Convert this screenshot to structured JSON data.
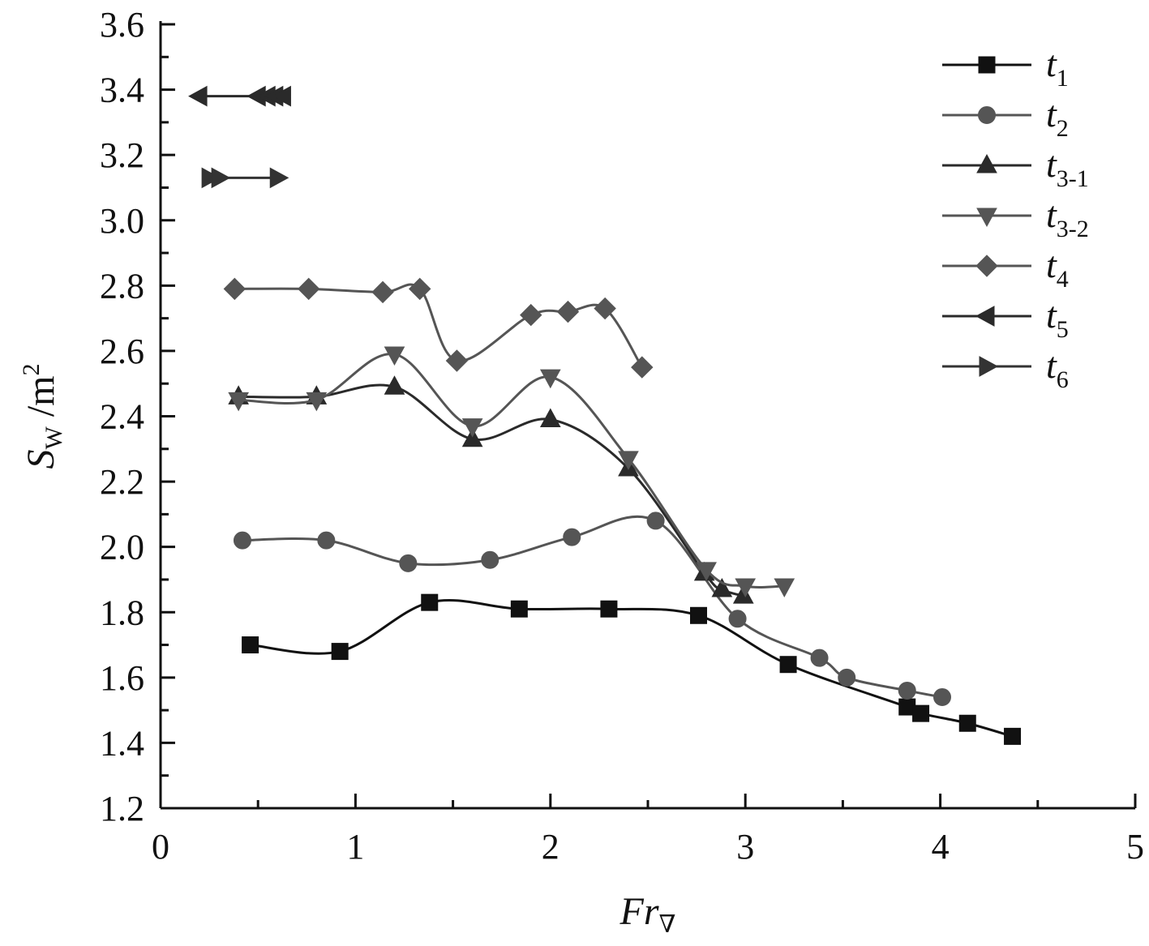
{
  "chart_data": {
    "type": "line",
    "xlabel": "Fr",
    "xlabel_sub": "∇",
    "ylabel": "S",
    "ylabel_sub": "W",
    "ylabel_unit": " /m",
    "ylabel_unit_sup": "2",
    "xlim": [
      0,
      5
    ],
    "ylim": [
      1.2,
      3.6
    ],
    "xticks": [
      0,
      1,
      2,
      3,
      4,
      5
    ],
    "yticks": [
      1.2,
      1.4,
      1.6,
      1.8,
      2.0,
      2.2,
      2.4,
      2.6,
      2.8,
      3.0,
      3.2,
      3.4,
      3.6
    ],
    "xtick_labels": [
      "0",
      "1",
      "2",
      "3",
      "4",
      "5"
    ],
    "ytick_labels": [
      "1.2",
      "1.4",
      "1.6",
      "1.8",
      "2.0",
      "2.2",
      "2.4",
      "2.6",
      "2.8",
      "3.0",
      "3.2",
      "3.4",
      "3.6"
    ],
    "grid": false,
    "legend_position": "top-right",
    "series": [
      {
        "name": "t",
        "sub": "1",
        "marker": "square",
        "color": "#111111",
        "x": [
          0.46,
          0.92,
          1.38,
          1.84,
          2.3,
          2.76,
          3.22,
          3.83,
          3.9,
          4.14,
          4.37
        ],
        "y": [
          1.7,
          1.68,
          1.83,
          1.81,
          1.81,
          1.79,
          1.64,
          1.51,
          1.49,
          1.46,
          1.42
        ]
      },
      {
        "name": "t",
        "sub": "2",
        "marker": "circle",
        "color": "#555555",
        "x": [
          0.42,
          0.85,
          1.27,
          1.69,
          2.11,
          2.54,
          2.96,
          3.38,
          3.52,
          3.83,
          4.01
        ],
        "y": [
          2.02,
          2.02,
          1.95,
          1.96,
          2.03,
          2.08,
          1.78,
          1.66,
          1.6,
          1.56,
          1.54
        ]
      },
      {
        "name": "t",
        "sub": "3-1",
        "marker": "triangle-up",
        "color": "#2a2a2a",
        "x": [
          0.4,
          0.8,
          1.2,
          1.6,
          2.0,
          2.4,
          2.79,
          2.88,
          2.99
        ],
        "y": [
          2.46,
          2.46,
          2.49,
          2.33,
          2.39,
          2.24,
          1.92,
          1.87,
          1.85
        ]
      },
      {
        "name": "t",
        "sub": "3-2",
        "marker": "triangle-down",
        "color": "#555555",
        "x": [
          0.4,
          0.8,
          1.2,
          1.6,
          2.0,
          2.4,
          2.8,
          3.0,
          3.2
        ],
        "y": [
          2.45,
          2.45,
          2.59,
          2.37,
          2.52,
          2.27,
          1.93,
          1.88,
          1.88
        ]
      },
      {
        "name": "t",
        "sub": "4",
        "marker": "diamond",
        "color": "#555555",
        "x": [
          0.38,
          0.76,
          1.14,
          1.33,
          1.52,
          1.9,
          2.09,
          2.28,
          2.47
        ],
        "y": [
          2.79,
          2.79,
          2.78,
          2.79,
          2.57,
          2.71,
          2.72,
          2.73,
          2.55
        ]
      },
      {
        "name": "t",
        "sub": "5",
        "marker": "triangle-left",
        "color": "#2a2a2a",
        "x": [
          0.2,
          0.5,
          0.55,
          0.59,
          0.63
        ],
        "y": [
          3.38,
          3.38,
          3.38,
          3.38,
          3.38
        ]
      },
      {
        "name": "t",
        "sub": "6",
        "marker": "triangle-right",
        "color": "#333333",
        "x": [
          0.25,
          0.3,
          0.6
        ],
        "y": [
          3.13,
          3.13,
          3.13
        ]
      }
    ]
  }
}
